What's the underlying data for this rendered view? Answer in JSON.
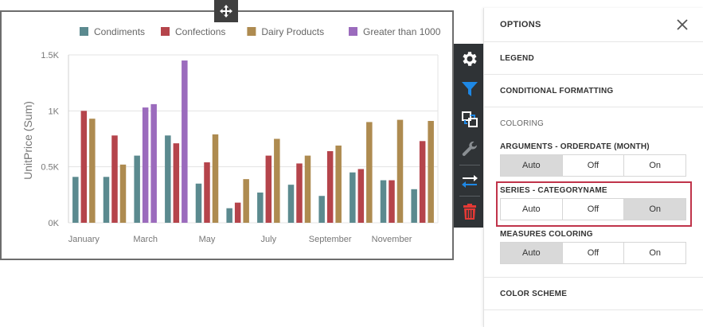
{
  "chart_data": {
    "type": "bar",
    "ylabel": "UnitPrice (Sum)",
    "xlabel": "",
    "ylim": [
      0,
      1500
    ],
    "y_ticks": [
      "0K",
      "0.5K",
      "1K",
      "1.5K"
    ],
    "y_tick_values": [
      0,
      500,
      1000,
      1500
    ],
    "grid": true,
    "legend_position": "top",
    "categories": [
      "January",
      "February",
      "March",
      "April",
      "May",
      "June",
      "July",
      "August",
      "September",
      "October",
      "November",
      "December"
    ],
    "x_tick_labels": [
      "January",
      "",
      "March",
      "",
      "May",
      "",
      "July",
      "",
      "September",
      "",
      "November",
      ""
    ],
    "series": [
      {
        "name": "Condiments",
        "color": "#5b8a8f",
        "values": [
          410,
          410,
          600,
          780,
          350,
          130,
          270,
          340,
          240,
          450,
          380,
          300
        ]
      },
      {
        "name": "Confections",
        "color": "#b5444b",
        "values": [
          1000,
          780,
          null,
          710,
          540,
          180,
          600,
          530,
          640,
          480,
          380,
          730
        ]
      },
      {
        "name": "Dairy Products",
        "color": "#ae8b50",
        "values": [
          930,
          520,
          null,
          null,
          790,
          390,
          750,
          600,
          690,
          900,
          920,
          910
        ]
      },
      {
        "name": "Greater than 1000",
        "color": "#9b6bbd",
        "values": [
          null,
          null,
          1030,
          1450,
          null,
          null,
          null,
          null,
          null,
          null,
          null,
          null
        ],
        "extra": {
          "March": [
            1030,
            1060
          ],
          "April": [
            1450
          ]
        }
      }
    ]
  },
  "panel": {
    "title": "OPTIONS",
    "sections": {
      "legend": "LEGEND",
      "conditional_formatting": "CONDITIONAL FORMATTING",
      "coloring": "COLORING",
      "color_scheme": "COLOR SCHEME"
    },
    "groups": [
      {
        "label": "ARGUMENTS - ORDERDATE (MONTH)",
        "options": [
          "Auto",
          "Off",
          "On"
        ],
        "selected": "Auto"
      },
      {
        "label": "SERIES - CATEGORYNAME",
        "options": [
          "Auto",
          "Off",
          "On"
        ],
        "selected": "On"
      },
      {
        "label": "MEASURES COLORING",
        "options": [
          "Auto",
          "Off",
          "On"
        ],
        "selected": "Auto"
      }
    ]
  },
  "toolbar": {
    "icons": [
      "gear-icon",
      "filter-icon",
      "interactivity-icon",
      "wrench-icon",
      "swap-icon",
      "trash-icon"
    ],
    "accent": "#1e88e5",
    "danger": "#e53935"
  }
}
